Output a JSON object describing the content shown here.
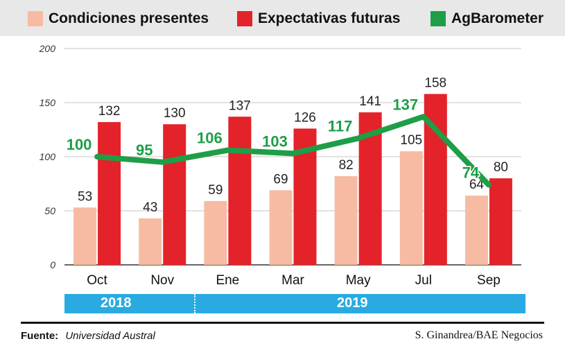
{
  "legend": [
    {
      "label": "Condiciones presentes",
      "color": "#F7BBA3"
    },
    {
      "label": "Expectativas futuras",
      "color": "#E3222A"
    },
    {
      "label": "AgBarometer",
      "color": "#1E9E47"
    }
  ],
  "years": {
    "y2018": "2018",
    "y2019": "2019"
  },
  "footer": {
    "source_label": "Fuente:",
    "source_value": "Universidad Austral",
    "credit": "S. Ginandrea/BAE Negocios"
  },
  "chart_data": {
    "type": "bar",
    "categories": [
      "Oct",
      "Nov",
      "Ene",
      "Mar",
      "May",
      "Jul",
      "Sep"
    ],
    "series": [
      {
        "name": "Condiciones presentes",
        "type": "bar",
        "color": "#F7BBA3",
        "values": [
          53,
          43,
          59,
          69,
          82,
          105,
          64
        ]
      },
      {
        "name": "Expectativas futuras",
        "type": "bar",
        "color": "#E3222A",
        "values": [
          132,
          130,
          137,
          126,
          141,
          158,
          80
        ]
      },
      {
        "name": "AgBarometer",
        "type": "line",
        "color": "#1E9E47",
        "values": [
          100,
          95,
          106,
          103,
          117,
          137,
          74
        ]
      }
    ],
    "y_ticks": [
      0,
      50,
      100,
      150,
      200
    ],
    "ylim": [
      0,
      200
    ],
    "grid": true
  }
}
